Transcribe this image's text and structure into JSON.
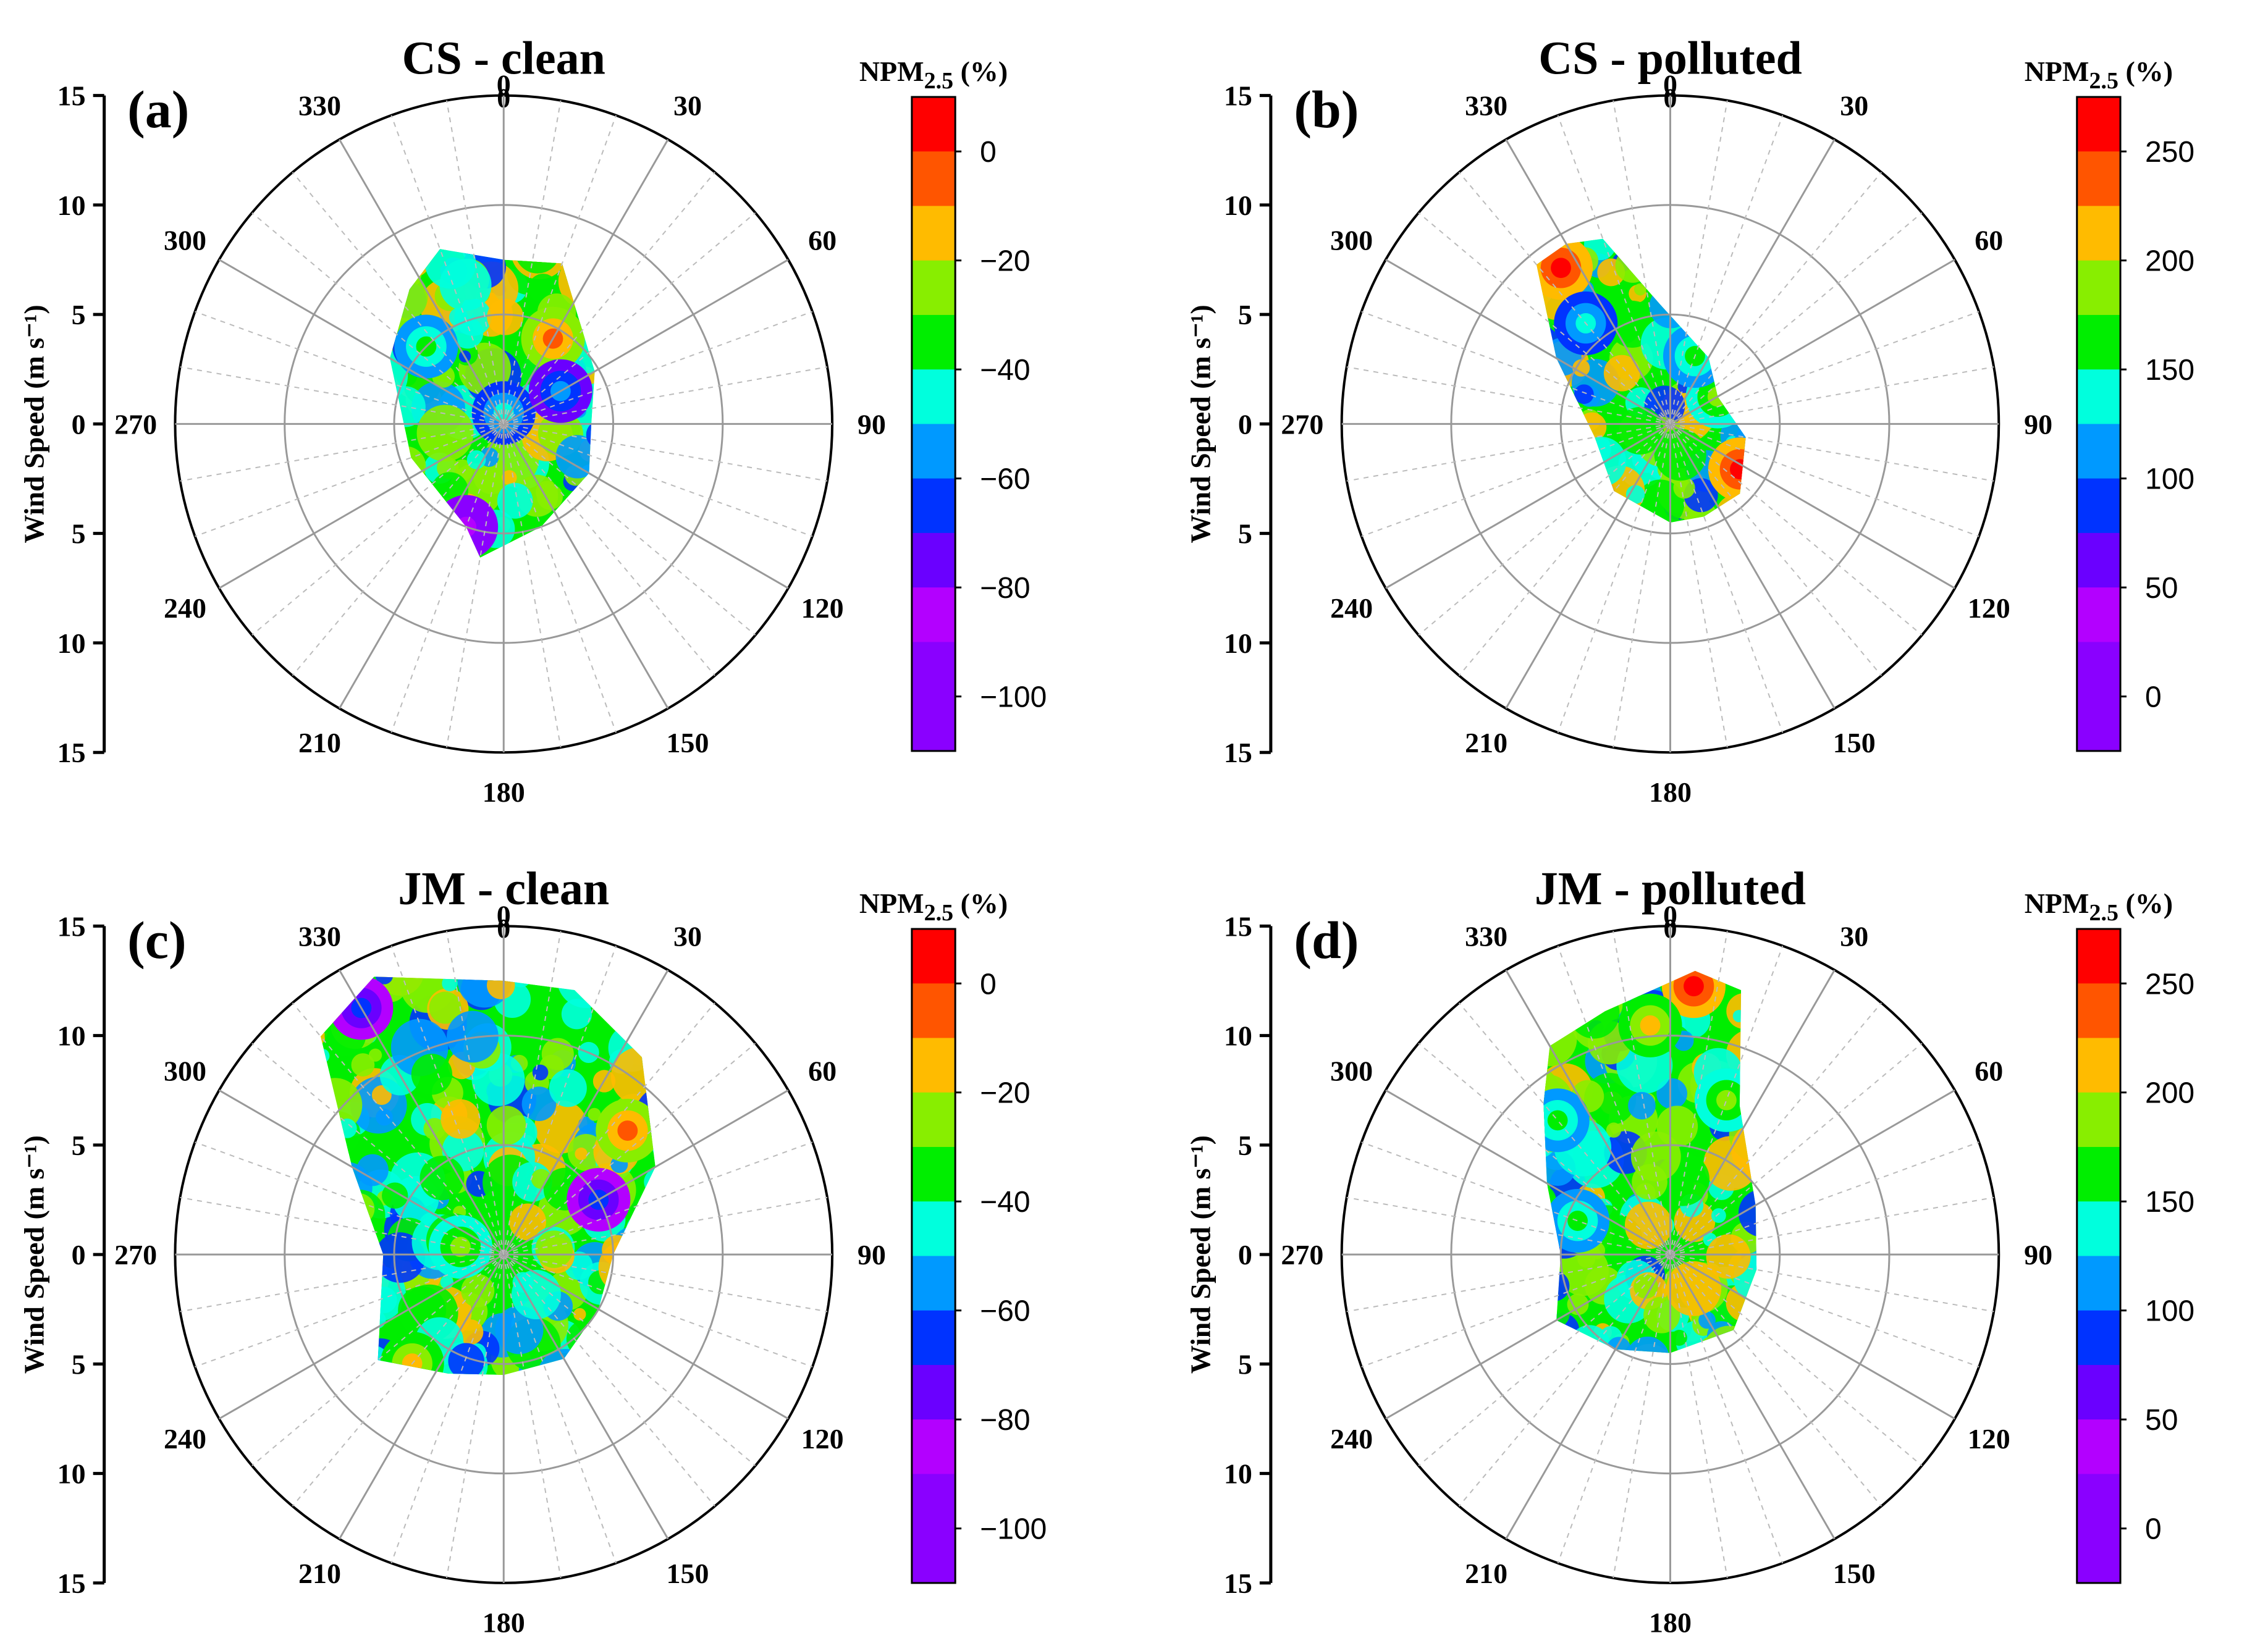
{
  "colors": {
    "palette": [
      "#8a00ff",
      "#b300ff",
      "#6a00ff",
      "#0033ff",
      "#0099ff",
      "#00ffdd",
      "#00ee00",
      "#88ee00",
      "#ffbb00",
      "#ff5500",
      "#ff0000"
    ]
  },
  "chart_data": [
    {
      "type": "polar-contour",
      "panel_label": "(a)",
      "title": "CS - clean",
      "title_site": "CS",
      "title_condition": "clean",
      "title_sub": "0",
      "north_label": "0",
      "ylabel": "Wind Speed (m s⁻¹)",
      "yticks": [
        "15",
        "10",
        "5",
        "0",
        "5",
        "10",
        "15"
      ],
      "r_max": 15,
      "angle_labels": [
        "30",
        "60",
        "90",
        "120",
        "150",
        "180",
        "210",
        "240",
        "270",
        "300",
        "330"
      ],
      "colorbar": {
        "title": "NPM₂.₅ (%)",
        "title_main": "NPM",
        "title_sub": "2.5",
        "title_unit": " (%)",
        "ticks": [
          "0",
          "−20",
          "−40",
          "−60",
          "−80",
          "−100"
        ],
        "tick_values": [
          0,
          -20,
          -40,
          -60,
          -80,
          -100
        ],
        "min": -110,
        "max": 10
      },
      "hull": [
        [
          340,
          8.5
        ],
        [
          0,
          7.5
        ],
        [
          20,
          7.8
        ],
        [
          60,
          4.8
        ],
        [
          90,
          4
        ],
        [
          120,
          4.5
        ],
        [
          160,
          5
        ],
        [
          190,
          6.2
        ],
        [
          200,
          5
        ],
        [
          250,
          4.5
        ],
        [
          300,
          6
        ],
        [
          325,
          7.5
        ]
      ],
      "blobs": [
        [
          30,
          4.5,
          9
        ],
        [
          315,
          5,
          6
        ],
        [
          200,
          5,
          1
        ],
        [
          0,
          0.5,
          5
        ],
        [
          60,
          3,
          4
        ]
      ]
    },
    {
      "type": "polar-contour",
      "panel_label": "(b)",
      "title": "CS - polluted",
      "title_site": "CS",
      "title_condition": "polluted",
      "title_sub": "0",
      "north_label": "0",
      "ylabel": "Wind Speed (m s⁻¹)",
      "yticks": [
        "15",
        "10",
        "5",
        "0",
        "5",
        "10",
        "15"
      ],
      "r_max": 15,
      "angle_labels": [
        "30",
        "60",
        "90",
        "120",
        "150",
        "180",
        "210",
        "240",
        "270",
        "300",
        "330"
      ],
      "colorbar": {
        "title": "NPM₂.₅ (%)",
        "title_main": "NPM",
        "title_sub": "2.5",
        "title_unit": " (%)",
        "ticks": [
          "250",
          "200",
          "150",
          "100",
          "50",
          "0"
        ],
        "tick_values": [
          250,
          200,
          150,
          100,
          50,
          0
        ],
        "min": -25,
        "max": 275
      },
      "hull": [
        [
          330,
          9.5
        ],
        [
          340,
          9
        ],
        [
          355,
          5.5
        ],
        [
          30,
          3.5
        ],
        [
          60,
          2.5
        ],
        [
          100,
          3.5
        ],
        [
          135,
          4.5
        ],
        [
          160,
          4.5
        ],
        [
          180,
          4.5
        ],
        [
          220,
          4
        ],
        [
          260,
          3.5
        ],
        [
          300,
          6
        ],
        [
          320,
          9.5
        ]
      ],
      "blobs": [
        [
          325,
          8.7,
          10
        ],
        [
          123,
          3.8,
          10
        ],
        [
          60,
          2.5,
          7
        ],
        [
          20,
          3.3,
          6
        ],
        [
          320,
          6,
          5
        ]
      ]
    },
    {
      "type": "polar-contour",
      "panel_label": "(c)",
      "title": "JM - clean",
      "title_site": "JM",
      "title_condition": "clean",
      "title_sub": "0",
      "north_label": "0",
      "ylabel": "Wind Speed (m s⁻¹)",
      "yticks": [
        "15",
        "10",
        "5",
        "0",
        "5",
        "10",
        "15"
      ],
      "r_max": 15,
      "angle_labels": [
        "30",
        "60",
        "90",
        "120",
        "150",
        "180",
        "210",
        "240",
        "270",
        "300",
        "330"
      ],
      "colorbar": {
        "title": "NPM₂.₅ (%)",
        "title_main": "NPM",
        "title_sub": "2.5",
        "title_unit": " (%)",
        "ticks": [
          "0",
          "−20",
          "−40",
          "−60",
          "−80",
          "−100"
        ],
        "tick_values": [
          0,
          -20,
          -40,
          -60,
          -80,
          -100
        ],
        "min": -110,
        "max": 10
      },
      "hull": [
        [
          335,
          14
        ],
        [
          0,
          12.5
        ],
        [
          15,
          12.5
        ],
        [
          35,
          11
        ],
        [
          60,
          8
        ],
        [
          90,
          5
        ],
        [
          120,
          5
        ],
        [
          150,
          5.5
        ],
        [
          180,
          5.5
        ],
        [
          205,
          6
        ],
        [
          230,
          7.5
        ],
        [
          270,
          5.5
        ],
        [
          300,
          8
        ],
        [
          320,
          13
        ]
      ],
      "blobs": [
        [
          45,
          8,
          9
        ],
        [
          330,
          13,
          3
        ],
        [
          220,
          6.5,
          8
        ],
        [
          60,
          5,
          3
        ],
        [
          280,
          2,
          7
        ]
      ]
    },
    {
      "type": "polar-contour",
      "panel_label": "(d)",
      "title": "JM - polluted",
      "title_site": "JM",
      "title_condition": "polluted",
      "title_sub": "0",
      "north_label": "0",
      "ylabel": "Wind Speed (m s⁻¹)",
      "yticks": [
        "15",
        "10",
        "5",
        "0",
        "5",
        "10",
        "15"
      ],
      "r_max": 15,
      "angle_labels": [
        "30",
        "60",
        "90",
        "120",
        "150",
        "180",
        "210",
        "240",
        "270",
        "300",
        "330"
      ],
      "colorbar": {
        "title": "NPM₂.₅ (%)",
        "title_main": "NPM",
        "title_sub": "2.5",
        "title_unit": " (%)",
        "ticks": [
          "250",
          "200",
          "150",
          "100",
          "50",
          "0"
        ],
        "tick_values": [
          250,
          200,
          150,
          100,
          50,
          0
        ],
        "min": -25,
        "max": 275
      },
      "hull": [
        [
          330,
          11
        ],
        [
          345,
          11.5
        ],
        [
          5,
          13
        ],
        [
          15,
          12.5
        ],
        [
          25,
          7.5
        ],
        [
          60,
          4.5
        ],
        [
          100,
          4
        ],
        [
          140,
          4.5
        ],
        [
          180,
          4.5
        ],
        [
          210,
          5
        ],
        [
          240,
          6
        ],
        [
          270,
          5
        ],
        [
          300,
          6.5
        ],
        [
          320,
          9
        ]
      ],
      "blobs": [
        [
          5,
          12.3,
          10
        ],
        [
          355,
          10.5,
          8
        ],
        [
          20,
          7.5,
          7
        ],
        [
          320,
          8,
          6
        ],
        [
          290,
          4.5,
          6
        ]
      ]
    }
  ]
}
